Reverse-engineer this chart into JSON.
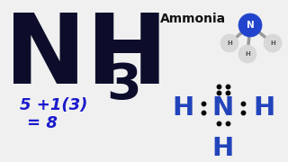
{
  "bg_color": "#f0f0f0",
  "nh3_color": "#0d0d2b",
  "formula_color": "#1a1acc",
  "formula_line1": "5 +1(3)",
  "formula_line2": "= 8",
  "ammonia_label": "Ammonia",
  "ammonia_color": "#111111",
  "lewis_color": "#2244bb",
  "dot_color": "#080808",
  "n_ball_color": "#2244cc",
  "h_ball_color": "#cccccc",
  "bond_color": "#999999"
}
